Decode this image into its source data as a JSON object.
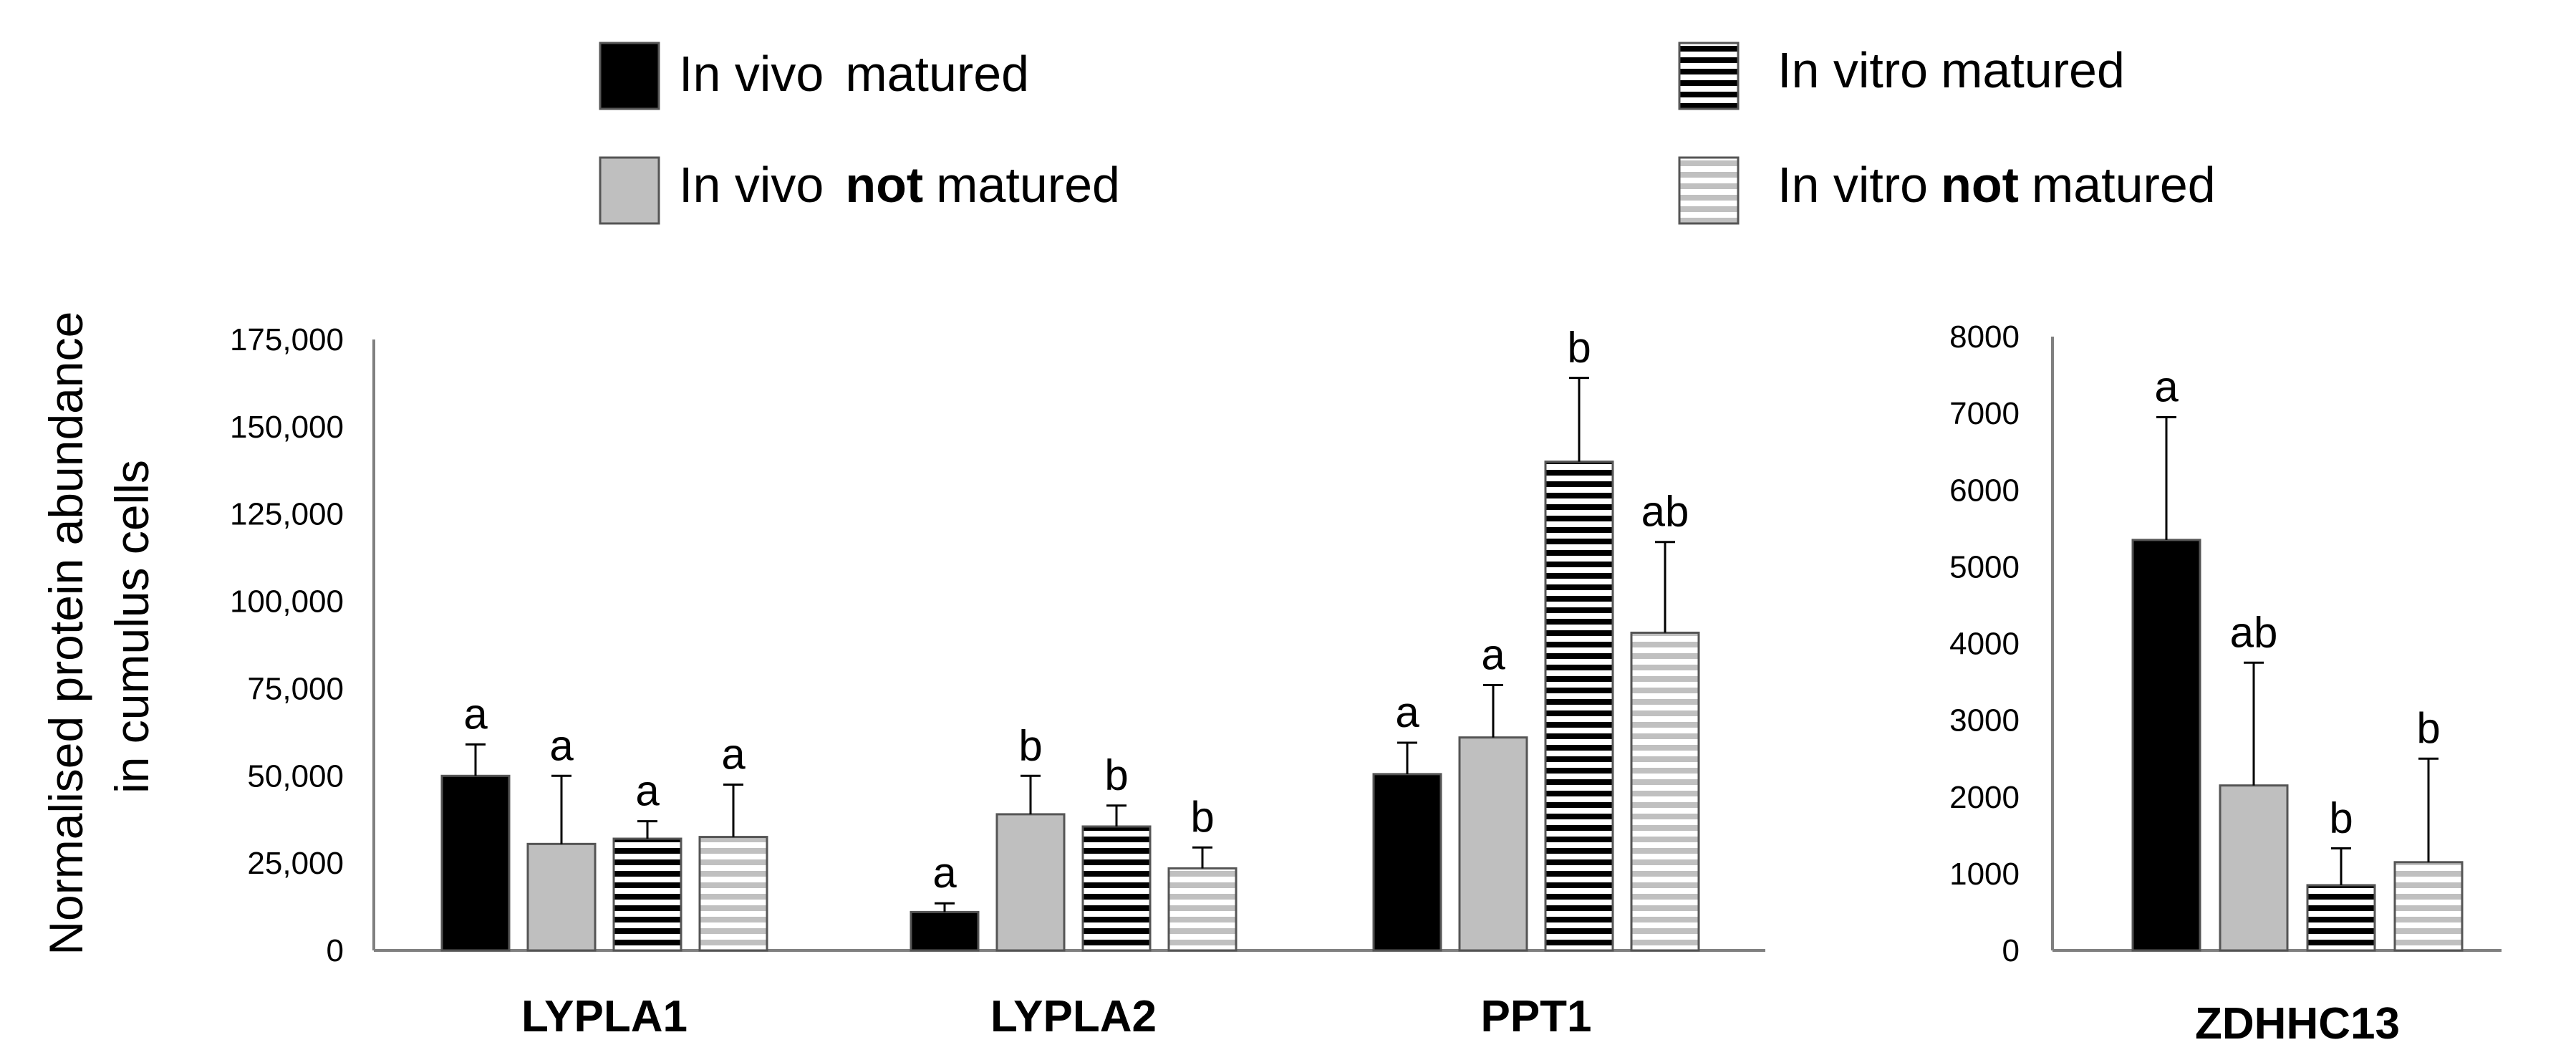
{
  "colors": {
    "in_vivo_matured": "#000000",
    "in_vivo_not_matured": "#bfbfbf",
    "in_vitro_matured_stripe": "#000000",
    "in_vitro_not_matured_stripe": "#c0c0c0",
    "border": "#555555",
    "axis": "#808080"
  },
  "legend": [
    {
      "id": "in_vivo_matured",
      "label_main": "In vivo",
      "label_bold": "",
      "label_rest": "matured",
      "fill": "solid-black"
    },
    {
      "id": "in_vitro_matured",
      "label_main": "In vitro",
      "label_bold": "",
      "label_rest": "matured",
      "fill": "stripes-black"
    },
    {
      "id": "in_vivo_not_matured",
      "label_main": "In vivo",
      "label_bold": "not",
      "label_rest": "matured",
      "fill": "solid-gray"
    },
    {
      "id": "in_vitro_not_matured",
      "label_main": "In vitro",
      "label_bold": "not",
      "label_rest": "matured",
      "fill": "stripes-gray"
    }
  ],
  "shared_ylabel": [
    "Normalised protein abundance",
    "in cumulus cells"
  ],
  "chart_data": [
    {
      "type": "bar",
      "categories": [
        "LYPLA1",
        "LYPLA2",
        "PPT1"
      ],
      "ylabel": "Normalised protein abundance in cumulus cells",
      "ylim": [
        0,
        175000
      ],
      "yticks": [
        0,
        25000,
        50000,
        75000,
        100000,
        125000,
        150000,
        175000
      ],
      "ytick_labels": [
        "0",
        "25,000",
        "50,000",
        "75,000",
        "100,000",
        "125,000",
        "150,000",
        "175,000"
      ],
      "series": [
        {
          "name": "In vivo matured",
          "values": [
            50000,
            11000,
            50500
          ],
          "errors": [
            9000,
            2500,
            9000
          ],
          "sig": [
            "a",
            "a",
            "a"
          ]
        },
        {
          "name": "In vivo not matured",
          "values": [
            30500,
            39000,
            61000
          ],
          "errors": [
            19500,
            11000,
            15000
          ],
          "sig": [
            "a",
            "b",
            "a"
          ]
        },
        {
          "name": "In vitro matured",
          "values": [
            32000,
            35500,
            140000
          ],
          "errors": [
            5000,
            6000,
            24000
          ],
          "sig": [
            "a",
            "b",
            "b"
          ]
        },
        {
          "name": "In vitro not matured",
          "values": [
            32500,
            23500,
            91000
          ],
          "errors": [
            15000,
            6000,
            26000
          ],
          "sig": [
            "a",
            "b",
            "ab"
          ]
        }
      ]
    },
    {
      "type": "bar",
      "categories": [
        "ZDHHC13"
      ],
      "ylim": [
        0,
        8000
      ],
      "yticks": [
        0,
        1000,
        2000,
        3000,
        4000,
        5000,
        6000,
        7000,
        8000
      ],
      "ytick_labels": [
        "0",
        "1000",
        "2000",
        "3000",
        "4000",
        "5000",
        "6000",
        "7000",
        "8000"
      ],
      "series": [
        {
          "name": "In vivo matured",
          "values": [
            5350
          ],
          "errors": [
            1600
          ],
          "sig": [
            "a"
          ]
        },
        {
          "name": "In vivo not matured",
          "values": [
            2150
          ],
          "errors": [
            1600
          ],
          "sig": [
            "ab"
          ]
        },
        {
          "name": "In vitro matured",
          "values": [
            850
          ],
          "errors": [
            480
          ],
          "sig": [
            "b"
          ]
        },
        {
          "name": "In vitro not matured",
          "values": [
            1150
          ],
          "errors": [
            1350
          ],
          "sig": [
            "b"
          ]
        }
      ]
    }
  ]
}
